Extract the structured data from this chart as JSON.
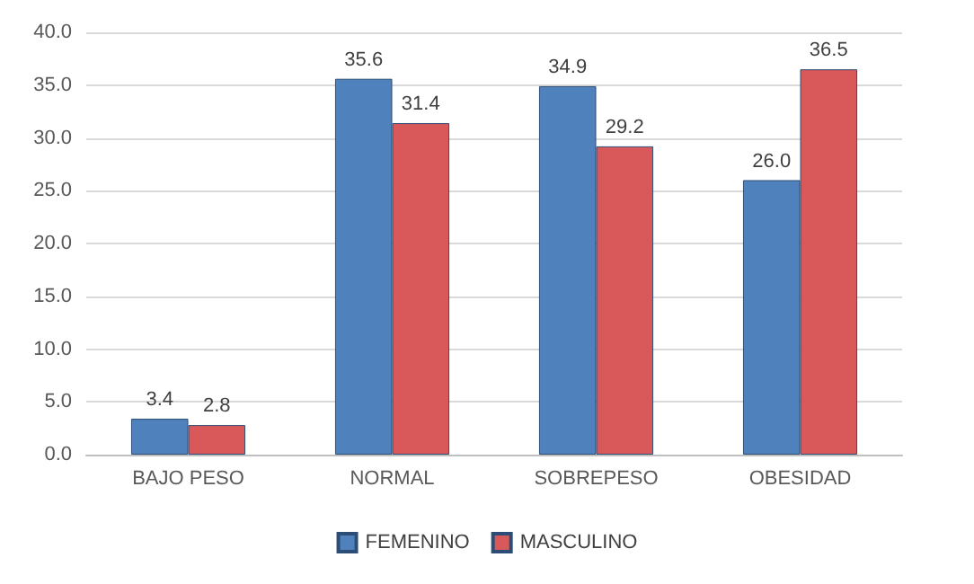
{
  "chart_data": {
    "type": "bar",
    "categories": [
      "BAJO PESO",
      "NORMAL",
      "SOBREPESO",
      "OBESIDAD"
    ],
    "series": [
      {
        "name": "FEMENINO",
        "color": "#4f81bd",
        "values": [
          3.4,
          35.6,
          34.9,
          26.0
        ],
        "value_labels": [
          "3.4",
          "35.6",
          "34.9",
          "26.0"
        ]
      },
      {
        "name": "MASCULINO",
        "color": "#d9595a",
        "values": [
          2.8,
          31.4,
          29.2,
          36.5
        ],
        "value_labels": [
          "2.8",
          "31.4",
          "29.2",
          "36.5"
        ]
      }
    ],
    "ylim": [
      0,
      40
    ],
    "yticks": [
      {
        "value": 0,
        "label": "0.0"
      },
      {
        "value": 5,
        "label": "5.0"
      },
      {
        "value": 10,
        "label": "10.0"
      },
      {
        "value": 15,
        "label": "15.0"
      },
      {
        "value": 20,
        "label": "20.0"
      },
      {
        "value": 25,
        "label": "25.0"
      },
      {
        "value": 30,
        "label": "30.0"
      },
      {
        "value": 35,
        "label": "35.0"
      },
      {
        "value": 40,
        "label": "40.0"
      }
    ],
    "grid": true,
    "legend": "bottom"
  }
}
